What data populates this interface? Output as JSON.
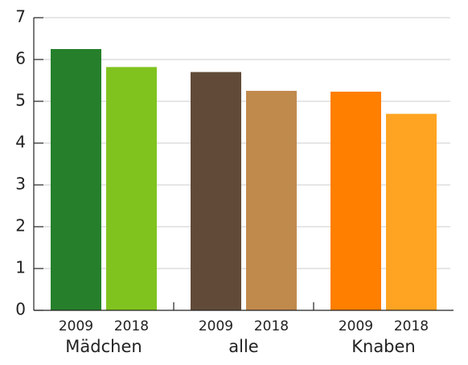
{
  "chart_data": {
    "type": "bar",
    "groups": [
      {
        "name": "Mädchen",
        "bars": [
          {
            "label": "2009",
            "value": 6.25,
            "color": "#267f2b"
          },
          {
            "label": "2018",
            "value": 5.82,
            "color": "#80c31f"
          }
        ]
      },
      {
        "name": "alle",
        "bars": [
          {
            "label": "2009",
            "value": 5.7,
            "color": "#614b38"
          },
          {
            "label": "2018",
            "value": 5.25,
            "color": "#c08a4d"
          }
        ]
      },
      {
        "name": "Knaben",
        "bars": [
          {
            "label": "2009",
            "value": 5.23,
            "color": "#ff7f00"
          },
          {
            "label": "2018",
            "value": 4.7,
            "color": "#ffa422"
          }
        ]
      }
    ],
    "ylim": [
      0,
      7
    ],
    "yticks": [
      0,
      1,
      2,
      3,
      4,
      5,
      6,
      7
    ],
    "grid": true
  }
}
